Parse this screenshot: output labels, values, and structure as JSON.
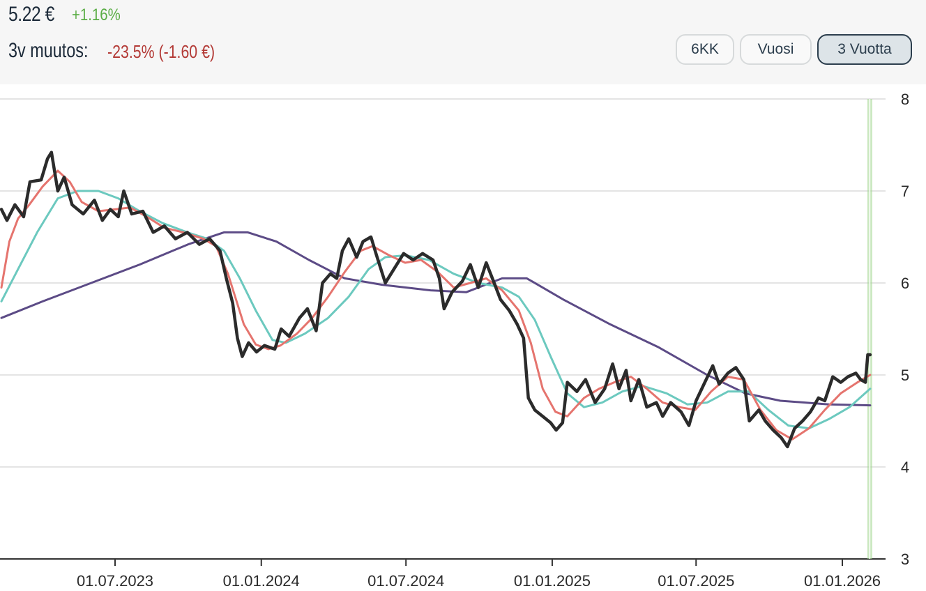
{
  "header": {
    "price": "5.22 €",
    "day_change": "+1.16%",
    "change_label": "3v muutos:",
    "change_value": "-23.5% (-1.60 €)"
  },
  "range_buttons": [
    {
      "label": "6KK",
      "active": false
    },
    {
      "label": "Vuosi",
      "active": false
    },
    {
      "label": "3 Vuotta",
      "active": true
    }
  ],
  "colors": {
    "price_line": "#2b2b2b",
    "ma_short": "#e5746e",
    "ma_medium": "#6cc9bf",
    "ma_long": "#5c4b86",
    "marker": "#9fd68d",
    "grid": "#dcdcdc",
    "positive": "#5aad45",
    "negative": "#b33a36"
  },
  "chart_data": {
    "type": "line",
    "yticks": [
      "3",
      "4",
      "5",
      "6",
      "7",
      "8"
    ],
    "ylim": [
      3,
      8
    ],
    "xlim": [
      "2023-02-05",
      "2026-02-10"
    ],
    "xticks": [
      {
        "date": "2023-07-01",
        "label": "01.07.2023"
      },
      {
        "date": "2024-01-01",
        "label": "01.01.2024"
      },
      {
        "date": "2024-07-01",
        "label": "01.07.2024"
      },
      {
        "date": "2025-01-01",
        "label": "01.01.2025"
      },
      {
        "date": "2025-07-01",
        "label": "01.07.2025"
      },
      {
        "date": "2026-01-01",
        "label": "01.01.2026"
      }
    ],
    "grid": true,
    "marker_date": "2026-02-05",
    "series": [
      {
        "key": "price",
        "points": [
          [
            "2023-02-08",
            6.8
          ],
          [
            "2023-02-15",
            6.68
          ],
          [
            "2023-02-25",
            6.85
          ],
          [
            "2023-03-08",
            6.72
          ],
          [
            "2023-03-16",
            7.1
          ],
          [
            "2023-03-30",
            7.12
          ],
          [
            "2023-04-07",
            7.35
          ],
          [
            "2023-04-12",
            7.42
          ],
          [
            "2023-04-20",
            7.0
          ],
          [
            "2023-04-28",
            7.15
          ],
          [
            "2023-05-08",
            6.85
          ],
          [
            "2023-05-22",
            6.75
          ],
          [
            "2023-06-05",
            6.9
          ],
          [
            "2023-06-15",
            6.68
          ],
          [
            "2023-06-25",
            6.8
          ],
          [
            "2023-07-05",
            6.72
          ],
          [
            "2023-07-12",
            7.0
          ],
          [
            "2023-07-22",
            6.75
          ],
          [
            "2023-08-05",
            6.78
          ],
          [
            "2023-08-18",
            6.55
          ],
          [
            "2023-09-01",
            6.62
          ],
          [
            "2023-09-15",
            6.48
          ],
          [
            "2023-09-30",
            6.55
          ],
          [
            "2023-10-15",
            6.42
          ],
          [
            "2023-10-28",
            6.48
          ],
          [
            "2023-11-10",
            6.35
          ],
          [
            "2023-11-18",
            6.05
          ],
          [
            "2023-11-26",
            5.78
          ],
          [
            "2023-12-02",
            5.4
          ],
          [
            "2023-12-08",
            5.2
          ],
          [
            "2023-12-16",
            5.35
          ],
          [
            "2023-12-26",
            5.25
          ],
          [
            "2024-01-05",
            5.32
          ],
          [
            "2024-01-18",
            5.28
          ],
          [
            "2024-01-26",
            5.5
          ],
          [
            "2024-02-05",
            5.42
          ],
          [
            "2024-02-18",
            5.62
          ],
          [
            "2024-02-28",
            5.72
          ],
          [
            "2024-03-10",
            5.48
          ],
          [
            "2024-03-18",
            6.0
          ],
          [
            "2024-03-28",
            6.1
          ],
          [
            "2024-04-05",
            6.05
          ],
          [
            "2024-04-12",
            6.35
          ],
          [
            "2024-04-20",
            6.48
          ],
          [
            "2024-04-30",
            6.28
          ],
          [
            "2024-05-08",
            6.45
          ],
          [
            "2024-05-18",
            6.5
          ],
          [
            "2024-05-25",
            6.3
          ],
          [
            "2024-06-05",
            6.0
          ],
          [
            "2024-06-18",
            6.18
          ],
          [
            "2024-06-28",
            6.32
          ],
          [
            "2024-07-10",
            6.25
          ],
          [
            "2024-07-22",
            6.32
          ],
          [
            "2024-08-04",
            6.25
          ],
          [
            "2024-08-12",
            6.05
          ],
          [
            "2024-08-18",
            5.72
          ],
          [
            "2024-08-28",
            5.9
          ],
          [
            "2024-09-10",
            6.02
          ],
          [
            "2024-09-20",
            6.2
          ],
          [
            "2024-09-30",
            5.95
          ],
          [
            "2024-10-10",
            6.22
          ],
          [
            "2024-10-20",
            6.0
          ],
          [
            "2024-10-28",
            5.82
          ],
          [
            "2024-11-08",
            5.7
          ],
          [
            "2024-11-18",
            5.55
          ],
          [
            "2024-11-26",
            5.4
          ],
          [
            "2024-12-02",
            4.75
          ],
          [
            "2024-12-10",
            4.62
          ],
          [
            "2024-12-20",
            4.55
          ],
          [
            "2024-12-30",
            4.48
          ],
          [
            "2025-01-06",
            4.4
          ],
          [
            "2025-01-14",
            4.48
          ],
          [
            "2025-01-20",
            4.92
          ],
          [
            "2025-02-01",
            4.82
          ],
          [
            "2025-02-12",
            4.95
          ],
          [
            "2025-02-24",
            4.7
          ],
          [
            "2025-03-08",
            4.85
          ],
          [
            "2025-03-18",
            5.12
          ],
          [
            "2025-03-26",
            4.85
          ],
          [
            "2025-04-04",
            5.05
          ],
          [
            "2025-04-10",
            4.72
          ],
          [
            "2025-04-20",
            4.95
          ],
          [
            "2025-04-30",
            4.65
          ],
          [
            "2025-05-12",
            4.7
          ],
          [
            "2025-05-20",
            4.55
          ],
          [
            "2025-05-30",
            4.7
          ],
          [
            "2025-06-12",
            4.6
          ],
          [
            "2025-06-22",
            4.45
          ],
          [
            "2025-07-01",
            4.72
          ],
          [
            "2025-07-12",
            4.92
          ],
          [
            "2025-07-22",
            5.1
          ],
          [
            "2025-07-30",
            4.9
          ],
          [
            "2025-08-10",
            5.02
          ],
          [
            "2025-08-20",
            5.08
          ],
          [
            "2025-08-30",
            4.95
          ],
          [
            "2025-09-06",
            4.5
          ],
          [
            "2025-09-18",
            4.62
          ],
          [
            "2025-09-26",
            4.5
          ],
          [
            "2025-10-06",
            4.4
          ],
          [
            "2025-10-16",
            4.32
          ],
          [
            "2025-10-24",
            4.22
          ],
          [
            "2025-11-02",
            4.42
          ],
          [
            "2025-11-12",
            4.5
          ],
          [
            "2025-11-22",
            4.6
          ],
          [
            "2025-12-02",
            4.75
          ],
          [
            "2025-12-10",
            4.72
          ],
          [
            "2025-12-20",
            4.98
          ],
          [
            "2025-12-30",
            4.92
          ],
          [
            "2026-01-08",
            4.98
          ],
          [
            "2026-01-18",
            5.02
          ],
          [
            "2026-01-24",
            4.95
          ],
          [
            "2026-01-30",
            4.92
          ],
          [
            "2026-02-02",
            5.22
          ],
          [
            "2026-02-05",
            5.22
          ]
        ]
      },
      {
        "key": "ma_short",
        "points": [
          [
            "2023-02-08",
            5.95
          ],
          [
            "2023-02-18",
            6.45
          ],
          [
            "2023-03-01",
            6.7
          ],
          [
            "2023-03-15",
            6.85
          ],
          [
            "2023-04-01",
            7.05
          ],
          [
            "2023-04-20",
            7.22
          ],
          [
            "2023-05-05",
            7.1
          ],
          [
            "2023-05-20",
            6.88
          ],
          [
            "2023-06-10",
            6.78
          ],
          [
            "2023-07-01",
            6.8
          ],
          [
            "2023-07-20",
            6.82
          ],
          [
            "2023-08-10",
            6.72
          ],
          [
            "2023-09-01",
            6.6
          ],
          [
            "2023-09-25",
            6.55
          ],
          [
            "2023-10-20",
            6.48
          ],
          [
            "2023-11-05",
            6.4
          ],
          [
            "2023-11-20",
            6.1
          ],
          [
            "2023-12-10",
            5.55
          ],
          [
            "2023-12-25",
            5.33
          ],
          [
            "2024-01-10",
            5.28
          ],
          [
            "2024-01-25",
            5.32
          ],
          [
            "2024-02-15",
            5.45
          ],
          [
            "2024-03-05",
            5.62
          ],
          [
            "2024-03-25",
            5.85
          ],
          [
            "2024-04-15",
            6.12
          ],
          [
            "2024-05-05",
            6.35
          ],
          [
            "2024-05-20",
            6.4
          ],
          [
            "2024-06-10",
            6.3
          ],
          [
            "2024-06-30",
            6.22
          ],
          [
            "2024-07-20",
            6.25
          ],
          [
            "2024-08-10",
            6.12
          ],
          [
            "2024-08-30",
            5.95
          ],
          [
            "2024-09-20",
            6.0
          ],
          [
            "2024-10-10",
            6.05
          ],
          [
            "2024-10-30",
            5.92
          ],
          [
            "2024-11-20",
            5.7
          ],
          [
            "2024-12-05",
            5.35
          ],
          [
            "2024-12-20",
            4.85
          ],
          [
            "2025-01-05",
            4.6
          ],
          [
            "2025-01-20",
            4.55
          ],
          [
            "2025-02-10",
            4.75
          ],
          [
            "2025-03-01",
            4.85
          ],
          [
            "2025-03-20",
            4.92
          ],
          [
            "2025-04-10",
            4.98
          ],
          [
            "2025-04-30",
            4.85
          ],
          [
            "2025-05-20",
            4.7
          ],
          [
            "2025-06-10",
            4.65
          ],
          [
            "2025-06-30",
            4.62
          ],
          [
            "2025-07-20",
            4.82
          ],
          [
            "2025-08-10",
            4.98
          ],
          [
            "2025-08-30",
            4.95
          ],
          [
            "2025-09-20",
            4.62
          ],
          [
            "2025-10-10",
            4.4
          ],
          [
            "2025-10-30",
            4.3
          ],
          [
            "2025-11-20",
            4.42
          ],
          [
            "2025-12-10",
            4.62
          ],
          [
            "2025-12-30",
            4.8
          ],
          [
            "2026-01-20",
            4.92
          ],
          [
            "2026-02-05",
            5.0
          ]
        ]
      },
      {
        "key": "ma_medium",
        "points": [
          [
            "2023-02-08",
            5.8
          ],
          [
            "2023-03-01",
            6.15
          ],
          [
            "2023-03-25",
            6.55
          ],
          [
            "2023-04-20",
            6.92
          ],
          [
            "2023-05-15",
            7.0
          ],
          [
            "2023-06-10",
            7.0
          ],
          [
            "2023-07-05",
            6.92
          ],
          [
            "2023-08-01",
            6.78
          ],
          [
            "2023-08-30",
            6.65
          ],
          [
            "2023-09-30",
            6.55
          ],
          [
            "2023-10-25",
            6.48
          ],
          [
            "2023-11-15",
            6.35
          ],
          [
            "2023-12-05",
            6.05
          ],
          [
            "2023-12-25",
            5.7
          ],
          [
            "2024-01-15",
            5.38
          ],
          [
            "2024-02-01",
            5.35
          ],
          [
            "2024-02-25",
            5.45
          ],
          [
            "2024-03-25",
            5.62
          ],
          [
            "2024-04-20",
            5.85
          ],
          [
            "2024-05-15",
            6.15
          ],
          [
            "2024-06-05",
            6.28
          ],
          [
            "2024-06-30",
            6.3
          ],
          [
            "2024-07-30",
            6.25
          ],
          [
            "2024-08-30",
            6.1
          ],
          [
            "2024-09-30",
            6.0
          ],
          [
            "2024-10-30",
            5.95
          ],
          [
            "2024-11-20",
            5.85
          ],
          [
            "2024-12-10",
            5.6
          ],
          [
            "2024-12-30",
            5.2
          ],
          [
            "2025-01-20",
            4.8
          ],
          [
            "2025-02-10",
            4.65
          ],
          [
            "2025-03-05",
            4.7
          ],
          [
            "2025-03-30",
            4.82
          ],
          [
            "2025-04-25",
            4.88
          ],
          [
            "2025-05-25",
            4.8
          ],
          [
            "2025-06-20",
            4.68
          ],
          [
            "2025-07-15",
            4.7
          ],
          [
            "2025-08-10",
            4.82
          ],
          [
            "2025-09-05",
            4.82
          ],
          [
            "2025-09-30",
            4.62
          ],
          [
            "2025-10-25",
            4.45
          ],
          [
            "2025-11-20",
            4.42
          ],
          [
            "2025-12-15",
            4.52
          ],
          [
            "2026-01-10",
            4.65
          ],
          [
            "2026-02-05",
            4.85
          ]
        ]
      },
      {
        "key": "ma_long",
        "points": [
          [
            "2023-02-08",
            5.62
          ],
          [
            "2023-04-01",
            5.8
          ],
          [
            "2023-06-01",
            6.0
          ],
          [
            "2023-08-01",
            6.2
          ],
          [
            "2023-10-01",
            6.42
          ],
          [
            "2023-11-15",
            6.55
          ],
          [
            "2023-12-15",
            6.55
          ],
          [
            "2024-01-20",
            6.45
          ],
          [
            "2024-03-01",
            6.25
          ],
          [
            "2024-04-15",
            6.05
          ],
          [
            "2024-06-01",
            5.98
          ],
          [
            "2024-08-01",
            5.92
          ],
          [
            "2024-09-15",
            5.9
          ],
          [
            "2024-10-30",
            6.05
          ],
          [
            "2024-11-30",
            6.05
          ],
          [
            "2025-01-15",
            5.82
          ],
          [
            "2025-03-15",
            5.55
          ],
          [
            "2025-05-15",
            5.3
          ],
          [
            "2025-07-15",
            5.0
          ],
          [
            "2025-09-01",
            4.8
          ],
          [
            "2025-10-15",
            4.72
          ],
          [
            "2025-12-15",
            4.68
          ],
          [
            "2026-02-05",
            4.67
          ]
        ]
      }
    ]
  }
}
